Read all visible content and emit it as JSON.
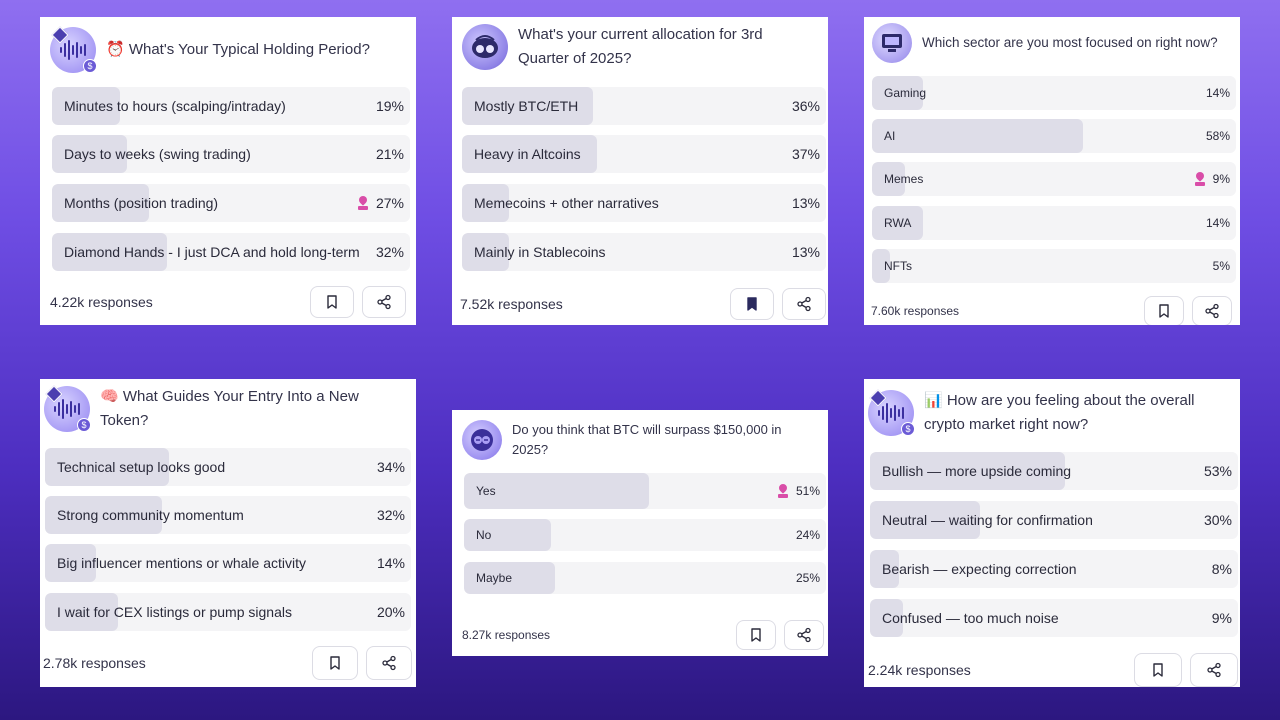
{
  "polls": [
    {
      "question": "⏰ What's Your Typical Holding Period?",
      "avatar": "waveform-avatar-icon",
      "options": [
        {
          "label": "Minutes to hours (scalping/intraday)",
          "percent": "19%",
          "value": 19
        },
        {
          "label": "Days to weeks (swing trading)",
          "percent": "21%",
          "value": 21
        },
        {
          "label": "Months (position trading)",
          "percent": "27%",
          "value": 27,
          "voted": true
        },
        {
          "label": "Diamond Hands - I just DCA and hold long-term",
          "percent": "32%",
          "value": 32
        }
      ],
      "responses": "4.22k responses",
      "bookmarked": false
    },
    {
      "question": "What's your current allocation for 3rd Quarter of 2025?",
      "avatar": "robot-avatar-icon",
      "options": [
        {
          "label": "Mostly BTC/ETH",
          "percent": "36%",
          "value": 36
        },
        {
          "label": "Heavy in Altcoins",
          "percent": "37%",
          "value": 37
        },
        {
          "label": "Memecoins + other narratives",
          "percent": "13%",
          "value": 13
        },
        {
          "label": "Mainly in Stablecoins",
          "percent": "13%",
          "value": 13
        }
      ],
      "responses": "7.52k responses",
      "bookmarked": true
    },
    {
      "question": "Which sector are you most focused on right now?",
      "avatar": "computer-avatar-icon",
      "options": [
        {
          "label": "Gaming",
          "percent": "14%",
          "value": 14
        },
        {
          "label": "AI",
          "percent": "58%",
          "value": 58
        },
        {
          "label": "Memes",
          "percent": "9%",
          "value": 9,
          "voted": true
        },
        {
          "label": "RWA",
          "percent": "14%",
          "value": 14
        },
        {
          "label": "NFTs",
          "percent": "5%",
          "value": 5
        }
      ],
      "responses": "7.60k responses",
      "bookmarked": false
    },
    {
      "question": "🧠 What Guides Your Entry Into a New Token?",
      "avatar": "waveform-avatar-icon",
      "options": [
        {
          "label": "Technical setup looks good",
          "percent": "34%",
          "value": 34
        },
        {
          "label": "Strong community momentum",
          "percent": "32%",
          "value": 32
        },
        {
          "label": "Big influencer mentions or whale activity",
          "percent": "14%",
          "value": 14
        },
        {
          "label": "I wait for CEX listings or pump signals",
          "percent": "20%",
          "value": 20
        }
      ],
      "responses": "2.78k responses",
      "bookmarked": false
    },
    {
      "question": "Do you think that BTC will surpass $150,000 in 2025?",
      "avatar": "coin-avatar-icon",
      "options": [
        {
          "label": "Yes",
          "percent": "51%",
          "value": 51,
          "voted": true
        },
        {
          "label": "No",
          "percent": "24%",
          "value": 24
        },
        {
          "label": "Maybe",
          "percent": "25%",
          "value": 25
        }
      ],
      "responses": "8.27k responses",
      "bookmarked": false
    },
    {
      "question": "📊 How are you feeling about the overall crypto market right now?",
      "avatar": "waveform-avatar-icon",
      "options": [
        {
          "label": "Bullish — more upside coming",
          "percent": "53%",
          "value": 53
        },
        {
          "label": "Neutral — waiting for confirmation",
          "percent": "30%",
          "value": 30
        },
        {
          "label": "Bearish — expecting correction",
          "percent": "8%",
          "value": 8
        },
        {
          "label": "Confused — too much noise",
          "percent": "9%",
          "value": 9
        }
      ],
      "responses": "2.24k responses",
      "bookmarked": false
    }
  ],
  "colors": {
    "fill": "#dedde8",
    "track": "#f4f4f6",
    "vote_accent": "#d94da8",
    "bookmark_filled": "#2b2a5e"
  }
}
